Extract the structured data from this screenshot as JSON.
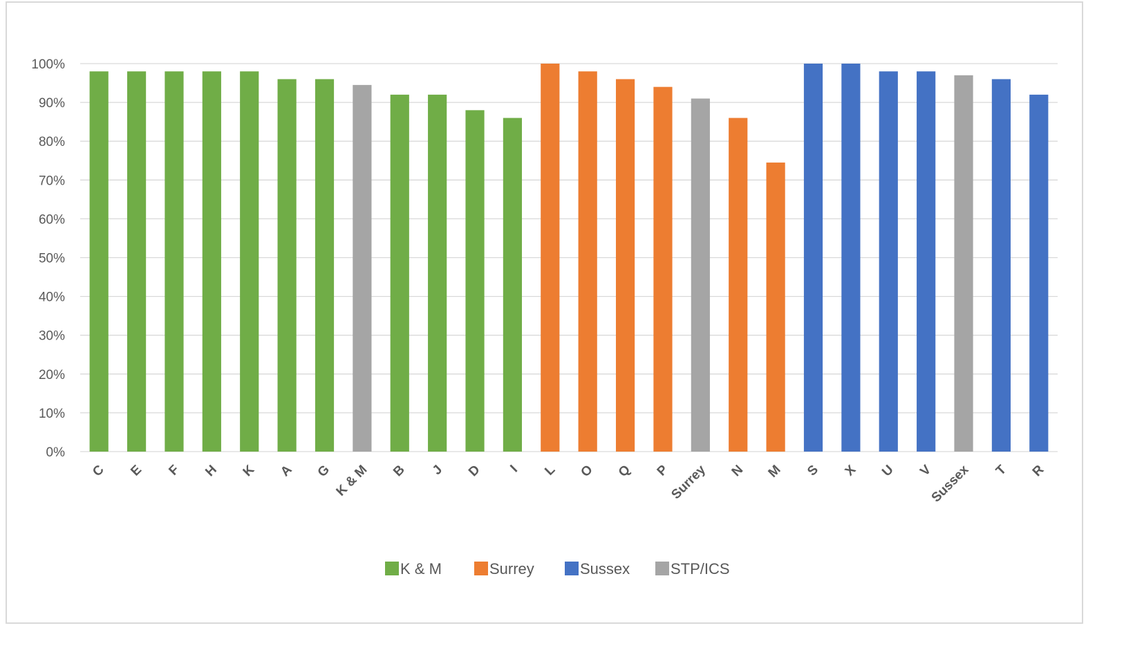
{
  "chart_data": {
    "type": "bar",
    "title": "",
    "xlabel": "",
    "ylabel": "",
    "ylim": [
      0,
      100
    ],
    "yticks": [
      "0%",
      "10%",
      "20%",
      "30%",
      "40%",
      "50%",
      "60%",
      "70%",
      "80%",
      "90%",
      "100%"
    ],
    "grid": "horizontal",
    "legend_placement": "bottom",
    "groups": [
      {
        "name": "K & M",
        "color": "#70ad47"
      },
      {
        "name": "Surrey",
        "color": "#ed7d31"
      },
      {
        "name": "Sussex",
        "color": "#4472c4"
      },
      {
        "name": "STP/ICS",
        "color": "#a5a5a5"
      }
    ],
    "categories": [
      "C",
      "E",
      "F",
      "H",
      "K",
      "A",
      "G",
      "K & M",
      "B",
      "J",
      "D",
      "I",
      "L",
      "O",
      "Q",
      "P",
      "Surrey",
      "N",
      "M",
      "S",
      "X",
      "U",
      "V",
      "Sussex",
      "T",
      "R"
    ],
    "values": [
      98,
      98,
      98,
      98,
      98,
      96,
      96,
      94.5,
      92,
      92,
      88,
      86,
      100,
      98,
      96,
      94,
      91,
      86,
      74.5,
      100,
      100,
      98,
      98,
      97,
      96,
      92
    ],
    "bar_groups": [
      "K & M",
      "K & M",
      "K & M",
      "K & M",
      "K & M",
      "K & M",
      "K & M",
      "STP/ICS",
      "K & M",
      "K & M",
      "K & M",
      "K & M",
      "Surrey",
      "Surrey",
      "Surrey",
      "Surrey",
      "STP/ICS",
      "Surrey",
      "Surrey",
      "Sussex",
      "Sussex",
      "Sussex",
      "Sussex",
      "STP/ICS",
      "Sussex",
      "Sussex"
    ]
  }
}
